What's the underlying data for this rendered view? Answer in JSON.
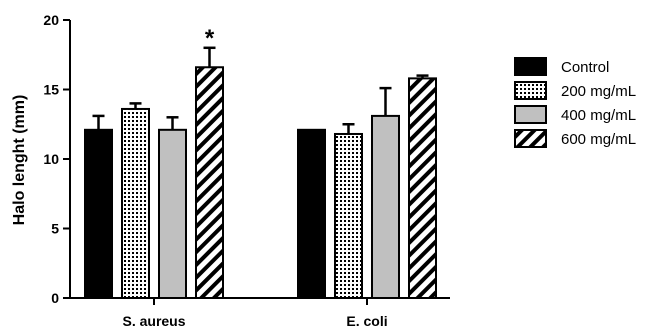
{
  "chart_data": {
    "type": "bar",
    "ylabel": "Halo lenght (mm)",
    "xlabel": "",
    "title": "",
    "ylim": [
      0,
      20
    ],
    "yticks": [
      0,
      5,
      10,
      15,
      20
    ],
    "grid": false,
    "legend_position": "right",
    "categories": [
      "S. aureus",
      "E. coli"
    ],
    "series": [
      {
        "name": "Control",
        "values": [
          12.1,
          12.1
        ],
        "errors": [
          1.0,
          0.0
        ],
        "pattern": "solid",
        "color": "#000000"
      },
      {
        "name": "200 mg/mL",
        "values": [
          13.6,
          11.8
        ],
        "errors": [
          0.4,
          0.7
        ],
        "pattern": "dots",
        "color": "#ffffff"
      },
      {
        "name": "400 mg/mL",
        "values": [
          12.1,
          13.1
        ],
        "errors": [
          0.9,
          2.0
        ],
        "pattern": "solid",
        "color": "#c0c0c0"
      },
      {
        "name": "600 mg/mL",
        "values": [
          16.6,
          15.8
        ],
        "errors": [
          1.4,
          0.2
        ],
        "pattern": "diagonal",
        "color": "#ffffff"
      }
    ],
    "annotations": [
      {
        "text": "*",
        "category": "S. aureus",
        "series": "600 mg/mL"
      }
    ]
  }
}
